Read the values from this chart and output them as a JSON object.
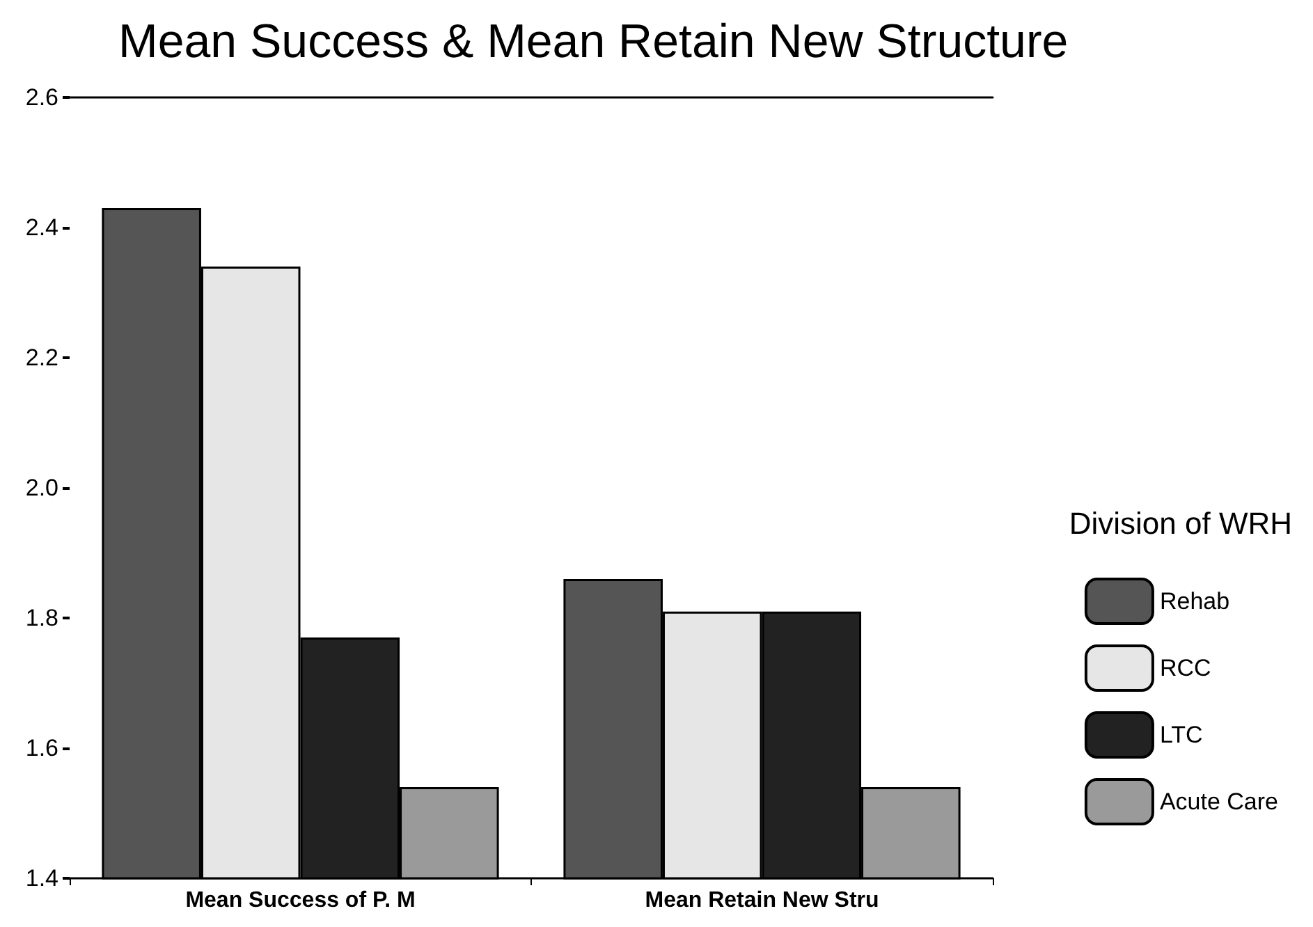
{
  "chart_data": {
    "type": "bar",
    "title": "Mean Success & Mean Retain New Structure",
    "legend_title": "Division of WRH",
    "categories": [
      "Mean Success of P. M",
      "Mean Retain New Stru"
    ],
    "series": [
      {
        "name": "Rehab",
        "color": "#555555",
        "values": [
          2.43,
          1.86
        ]
      },
      {
        "name": "RCC",
        "color": "#e6e6e6",
        "values": [
          2.34,
          1.81
        ]
      },
      {
        "name": "LTC",
        "color": "#222222",
        "values": [
          1.77,
          1.81
        ]
      },
      {
        "name": "Acute Care",
        "color": "#9a9a9a",
        "values": [
          1.54,
          1.54
        ]
      }
    ],
    "ylim": [
      1.4,
      2.6
    ],
    "yticks": [
      1.4,
      1.6,
      1.8,
      {
        "value": 2,
        "label": "2.0"
      },
      2.2,
      2.4,
      2.6
    ],
    "grid": false,
    "legend": "right"
  }
}
